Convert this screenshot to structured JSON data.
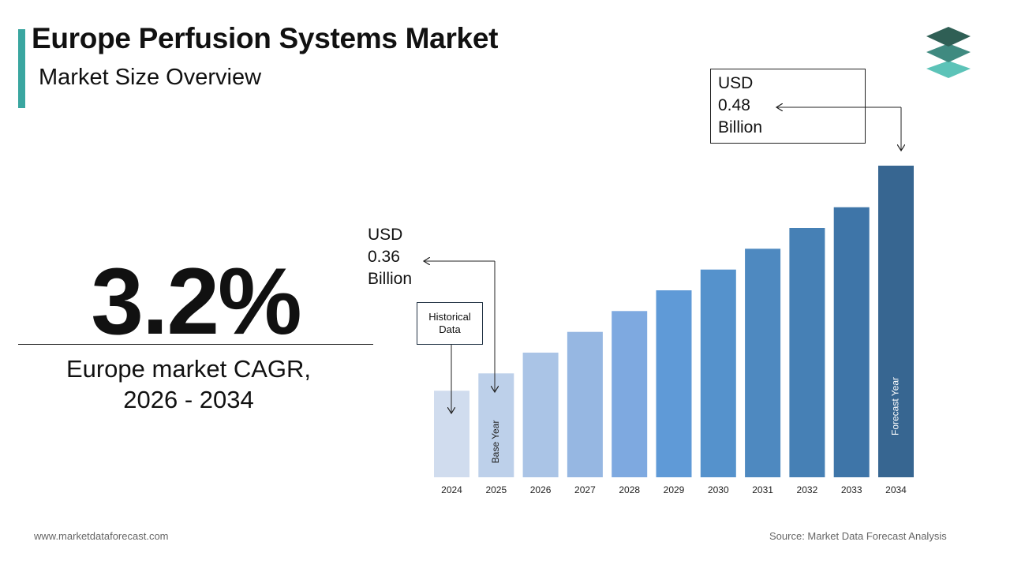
{
  "header": {
    "title": "Europe Perfusion Systems Market",
    "subtitle": "Market Size Overview"
  },
  "logo": {
    "icon": "stacked-layers-logo-icon",
    "colors": [
      "#2f5f55",
      "#3f8a80",
      "#5cc3b8"
    ]
  },
  "accent_color": "#3aa6a0",
  "kpi": {
    "value": "3.2%",
    "label_line1": "Europe market CAGR,",
    "label_line2": "2026 - 2034"
  },
  "callouts": {
    "end": {
      "line1": "USD",
      "line2": "0.48",
      "line3": "Billion"
    },
    "base": {
      "line1": "USD",
      "line2": "0.36",
      "line3": "Billion"
    },
    "historical": {
      "line1": "Historical",
      "line2": "Data"
    }
  },
  "chart_data": {
    "type": "bar",
    "categories": [
      "2024",
      "2025",
      "2026",
      "2027",
      "2028",
      "2029",
      "2030",
      "2031",
      "2032",
      "2033",
      "2034"
    ],
    "values": [
      0.35,
      0.36,
      0.372,
      0.384,
      0.396,
      0.408,
      0.42,
      0.432,
      0.444,
      0.456,
      0.48
    ],
    "bar_colors": [
      "#d0dcee",
      "#bdd0ea",
      "#aac4e6",
      "#96b7e2",
      "#7ea9e0",
      "#5f9ad7",
      "#5592cc",
      "#4e89c0",
      "#4680b5",
      "#3e75a8",
      "#376691"
    ],
    "bar_annotations": [
      {
        "category": "2025",
        "text": "Base Year"
      },
      {
        "category": "2034",
        "text": "Forecast Year"
      }
    ],
    "ylim": [
      0.3,
      0.48
    ],
    "xlabel": "",
    "ylabel": "",
    "grid": false
  },
  "footer": {
    "website": "www.marketdataforecast.com",
    "source": "Source: Market Data Forecast Analysis"
  }
}
